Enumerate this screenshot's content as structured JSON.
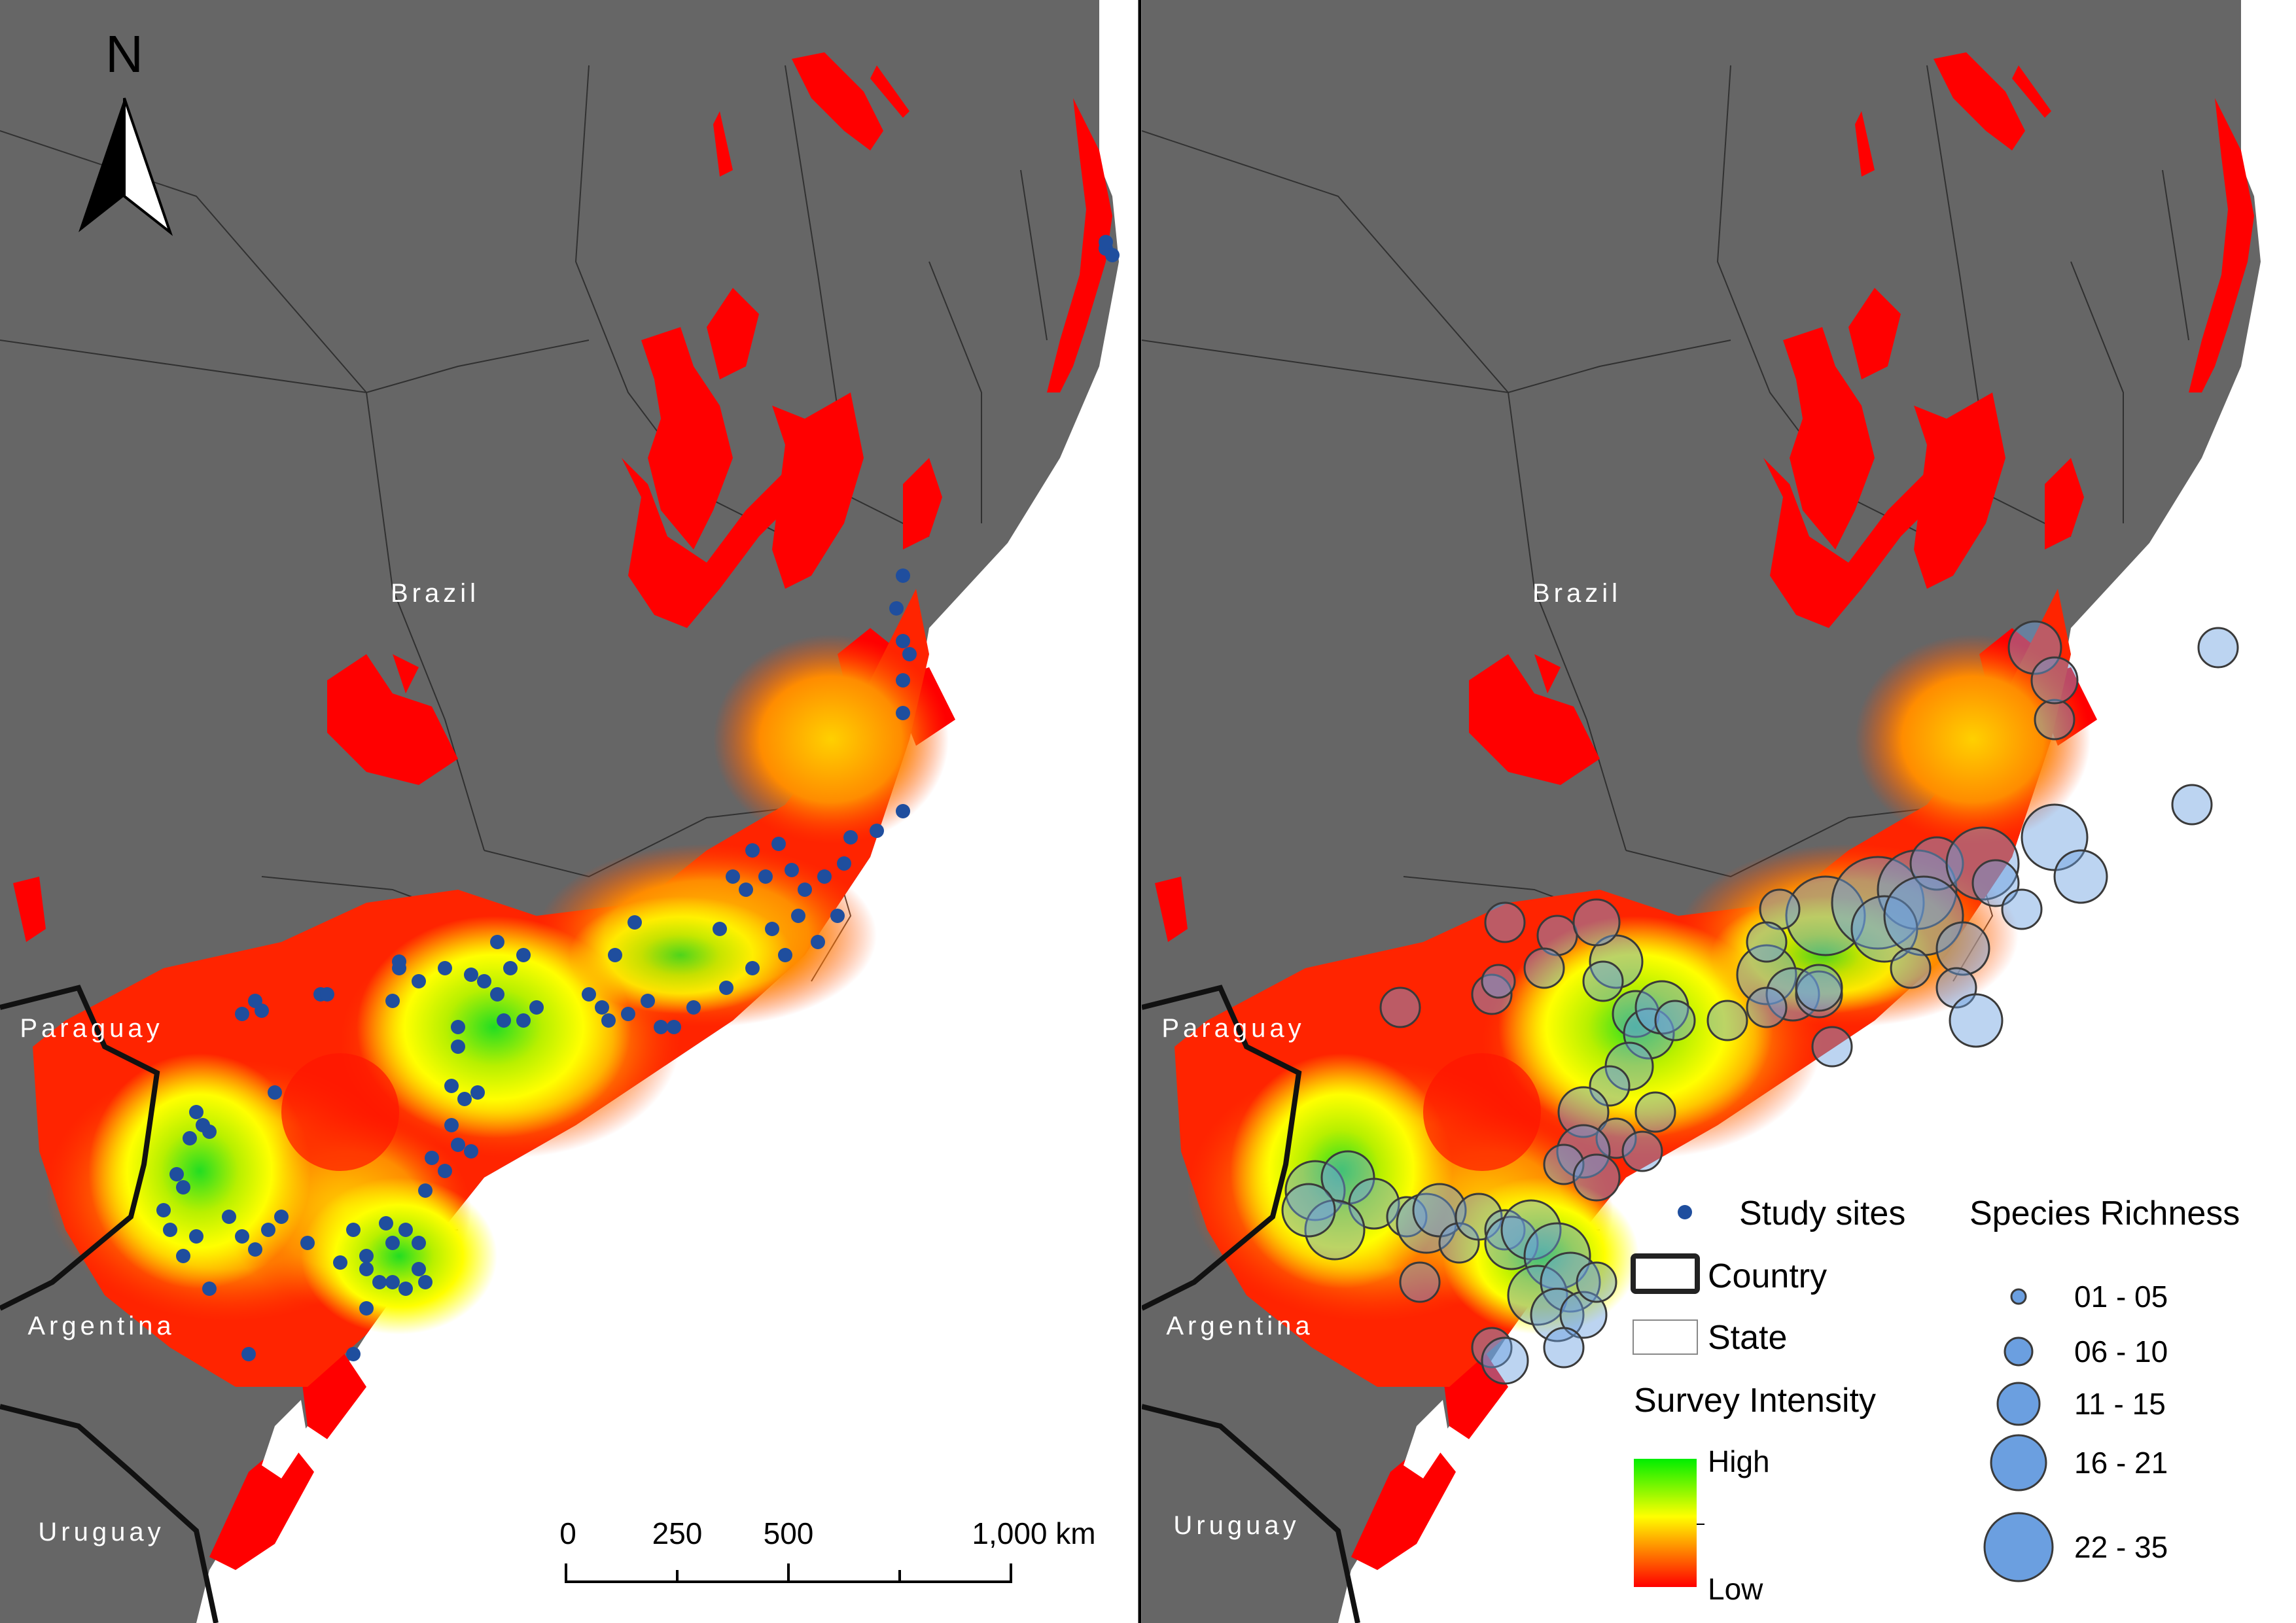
{
  "north_arrow": {
    "label": "N"
  },
  "country_labels": {
    "brazil": "Brazil",
    "paraguay": "Paraguay",
    "argentina": "Argentina",
    "uruguay": "Uruguay"
  },
  "scale_bar": {
    "ticks": [
      "0",
      "250",
      "500",
      "1,000 km"
    ]
  },
  "legend": {
    "study_sites": "Study sites",
    "country": "Country",
    "state": "State",
    "survey_intensity": "Survey Intensity",
    "high": "High",
    "low": "Low",
    "species_richness_title": "Species Richness",
    "richness_classes": [
      "01 - 05",
      "06 - 10",
      "11 - 15",
      "16 - 21",
      "22 - 35"
    ]
  },
  "colors": {
    "land": "#666666",
    "ocean": "#ffffff",
    "habitat": "#ff0000",
    "intensity_high": "#22dd22",
    "intensity_mid": "#ffff00",
    "intensity_low": "#ff0000",
    "study_site": "#1f4e9e",
    "richness_circle": "#6b9fe0"
  }
}
